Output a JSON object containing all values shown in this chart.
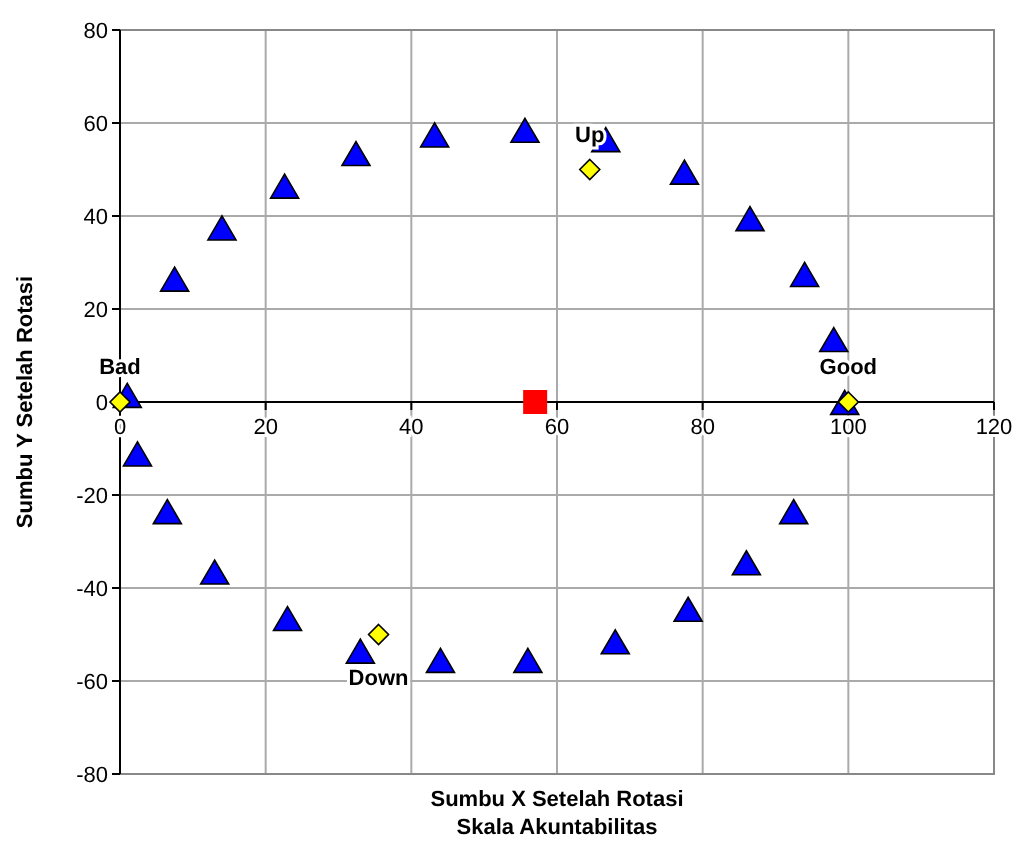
{
  "chart_data": {
    "type": "scatter",
    "xlabel": "Sumbu X Setelah Rotasi\nSkala Akuntabilitas",
    "ylabel": "Sumbu Y Setelah Rotasi",
    "xlim": [
      0,
      120
    ],
    "ylim": [
      -80,
      80
    ],
    "xticks": [
      0,
      20,
      40,
      60,
      80,
      100,
      120
    ],
    "yticks": [
      -80,
      -60,
      -40,
      -20,
      0,
      20,
      40,
      60,
      80
    ],
    "grid": true,
    "series": [
      {
        "color": "#0000ff",
        "marker": "triangle",
        "x": [
          1,
          2.4,
          6.5,
          13,
          23,
          33,
          44,
          56,
          68,
          78,
          86,
          92.5,
          99.5,
          98,
          94,
          86.5,
          77.5,
          66.7,
          55.6,
          43.2,
          32.4,
          22.6,
          14,
          7.5
        ],
        "values": [
          1,
          -11.6,
          -24,
          -37,
          -47,
          -54,
          -56,
          -56,
          -52,
          -45,
          -35,
          -24,
          -0.5,
          13,
          27,
          39,
          49,
          56,
          58,
          57,
          53,
          46,
          37,
          26
        ]
      },
      {
        "color": "#ffff00",
        "marker": "diamond",
        "x": [
          0,
          100,
          64.5,
          35.5
        ],
        "values": [
          0,
          0,
          50,
          -50
        ]
      },
      {
        "color": "#ff0000",
        "marker": "square",
        "x": [
          57
        ],
        "values": [
          0
        ]
      }
    ],
    "annotations": [
      {
        "text": "Bad",
        "x": 0,
        "y": 0
      },
      {
        "text": "Good",
        "x": 100,
        "y": 0
      },
      {
        "text": "Up",
        "x": 64.5,
        "y": 50
      },
      {
        "text": "Down",
        "x": 35.5,
        "y": -50
      }
    ]
  }
}
